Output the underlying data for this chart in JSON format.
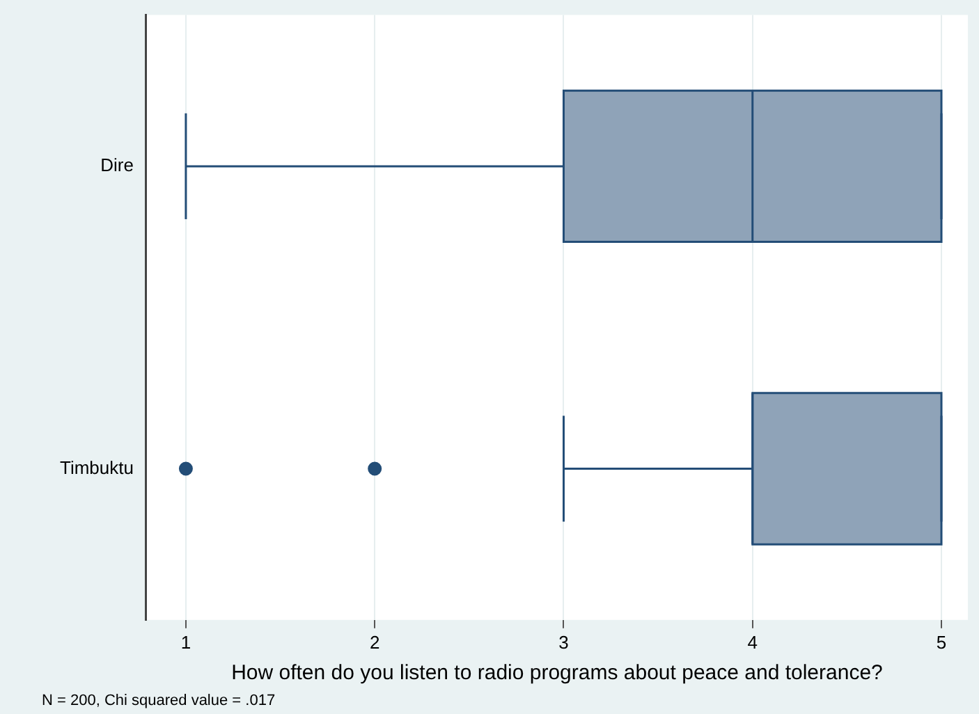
{
  "chart_data": {
    "type": "box",
    "orientation": "horizontal",
    "categories": [
      "Dire",
      "Timbuktu"
    ],
    "boxes": [
      {
        "low": 1,
        "q1": 3,
        "median": 4,
        "q3": 5,
        "high": 5
      },
      {
        "low": 3,
        "q1": 4,
        "median": 4,
        "q3": 5,
        "high": 5,
        "outliers": [
          1,
          2
        ]
      }
    ],
    "color": "#8fa3b8",
    "xlim": [
      0.79,
      5.14
    ],
    "xticks": [
      1,
      2,
      3,
      4,
      5
    ],
    "xlabel": "How often do you listen to radio programs about peace and tolerance?",
    "annotations": [
      "N = 200, Chi squared value = .017"
    ],
    "grid": "x"
  }
}
